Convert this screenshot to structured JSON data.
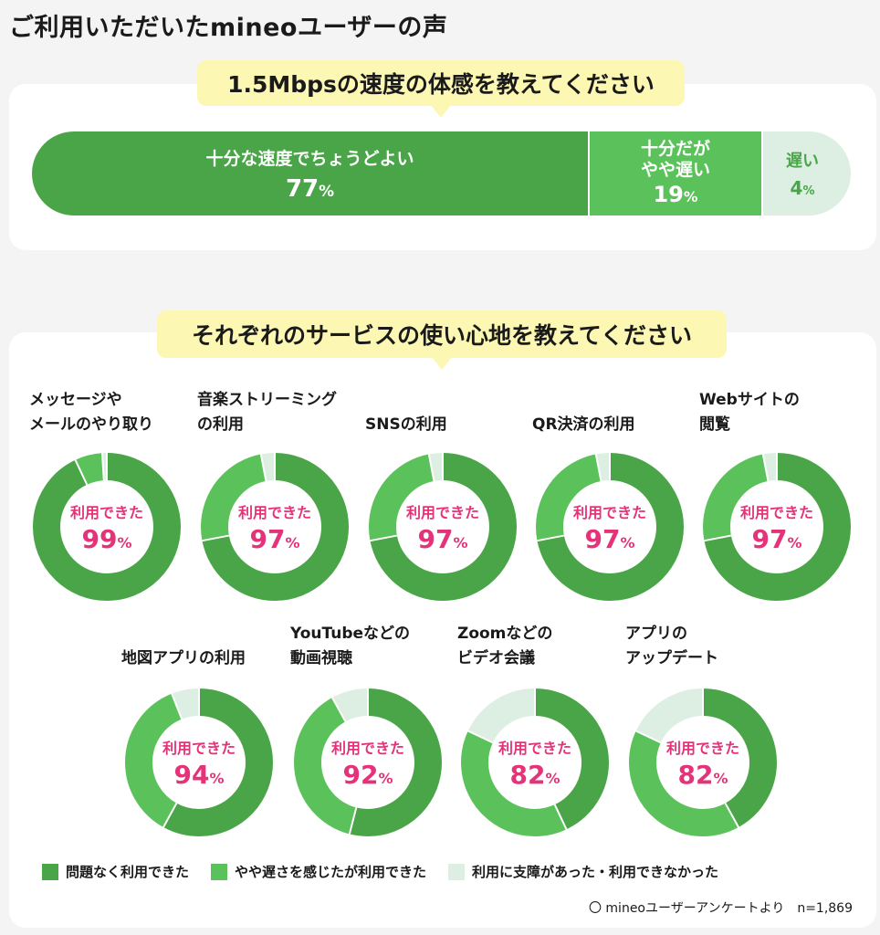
{
  "page_title": "ご利用いただいたmineoユーザーの声",
  "colors": {
    "dark_green": "#4aa548",
    "mid_green": "#5bc25b",
    "light_green": "#dcefe2",
    "pink": "#e5337a",
    "bubble": "#fcf7b3"
  },
  "chart_data": [
    {
      "type": "bar",
      "title": "1.5Mbpsの速度の体感を教えてください",
      "categories": [
        "十分な速度でちょうどよい",
        "十分だがやや遅い",
        "遅い"
      ],
      "values": [
        77,
        19,
        4
      ],
      "unit": "%",
      "segments": [
        {
          "label": "十分な速度でちょうどよい",
          "value": 77,
          "pct_text": "77"
        },
        {
          "label_lines": [
            "十分だが",
            "やや遅い"
          ],
          "value": 19,
          "pct_text": "19"
        },
        {
          "label": "遅い",
          "value": 4,
          "pct_text": "4"
        }
      ]
    },
    {
      "type": "pie",
      "title": "それぞれのサービスの使い心地を教えてください",
      "center_label": "利用できた",
      "legend": [
        "問題なく利用できた",
        "やや遅さを感じたが利用できた",
        "利用に支障があった・利用できなかった"
      ],
      "items": [
        {
          "title_lines": [
            "メッセージや",
            "メールのやり取り"
          ],
          "ok": 93,
          "slow": 6,
          "ng": 1,
          "pct_text": "99"
        },
        {
          "title_lines": [
            "音楽ストリーミング",
            "の利用"
          ],
          "ok": 72,
          "slow": 25,
          "ng": 3,
          "pct_text": "97"
        },
        {
          "title_lines": [
            "SNSの利用"
          ],
          "ok": 72,
          "slow": 25,
          "ng": 3,
          "pct_text": "97"
        },
        {
          "title_lines": [
            "QR決済の利用"
          ],
          "ok": 72,
          "slow": 25,
          "ng": 3,
          "pct_text": "97"
        },
        {
          "title_lines": [
            "Webサイトの",
            "閲覧"
          ],
          "ok": 72,
          "slow": 25,
          "ng": 3,
          "pct_text": "97"
        },
        {
          "title_lines": [
            "地図アプリの利用"
          ],
          "ok": 58,
          "slow": 36,
          "ng": 6,
          "pct_text": "94"
        },
        {
          "title_lines": [
            "YouTubeなどの",
            "動画視聴"
          ],
          "ok": 54,
          "slow": 38,
          "ng": 8,
          "pct_text": "92"
        },
        {
          "title_lines": [
            "Zoomなどの",
            "ビデオ会議"
          ],
          "ok": 43,
          "slow": 39,
          "ng": 18,
          "pct_text": "82"
        },
        {
          "title_lines": [
            "アプリの",
            "アップデート"
          ],
          "ok": 42,
          "slow": 40,
          "ng": 18,
          "pct_text": "82"
        }
      ]
    }
  ],
  "percent_sign": "%",
  "note": "〇 mineoユーザーアンケートより　n=1,869"
}
